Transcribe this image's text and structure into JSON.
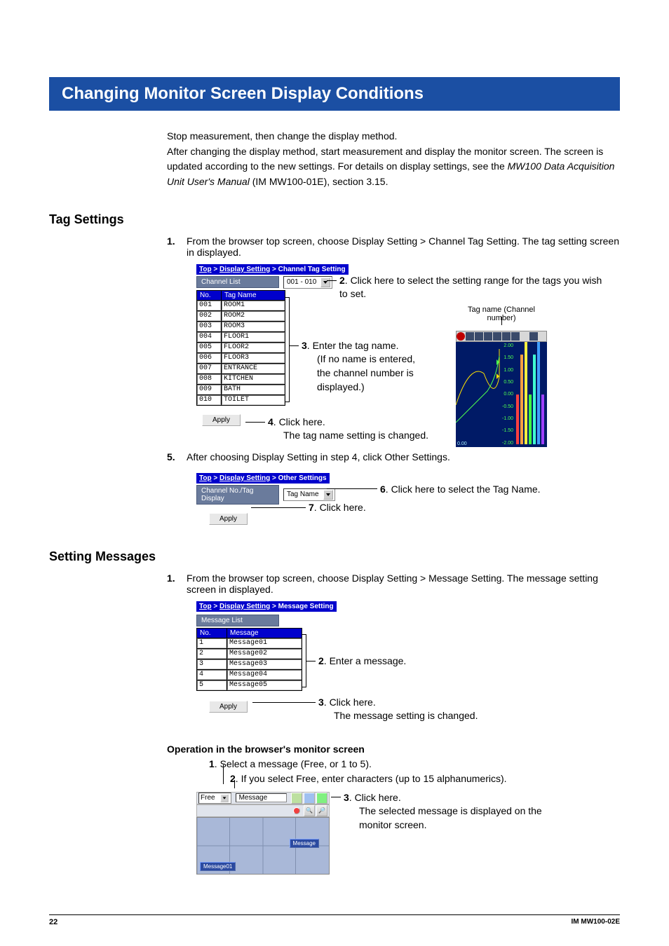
{
  "title": "Changing Monitor Screen Display Conditions",
  "intro": {
    "p1": "Stop measurement, then change the display method.",
    "p2": "After changing the display method, start measurement and display the monitor screen. The screen is updated according to the new settings. For details on display settings, see the ",
    "manual": "MW100 Data Acquisition Unit User's Manual",
    "p2b": " (IM MW100-01E), section 3.15."
  },
  "tag": {
    "heading": "Tag Settings",
    "step1_num": "1.",
    "step1": "From the browser top screen, choose Display Setting > Channel Tag Setting. The tag setting screen in displayed.",
    "breadcrumb": {
      "a": "Top",
      "sep": " > ",
      "b": "Display Setting",
      "c": " > Channel Tag Setting"
    },
    "panel": "Channel List",
    "range": "001 - 010",
    "col_no": "No.",
    "col_tag": "Tag Name",
    "rows": [
      {
        "no": "001",
        "name": "ROOM1"
      },
      {
        "no": "002",
        "name": "ROOM2"
      },
      {
        "no": "003",
        "name": "ROOM3"
      },
      {
        "no": "004",
        "name": "FLOOR1"
      },
      {
        "no": "005",
        "name": "FLOOR2"
      },
      {
        "no": "006",
        "name": "FLOOR3"
      },
      {
        "no": "007",
        "name": "ENTRANCE"
      },
      {
        "no": "008",
        "name": "KITCHEN"
      },
      {
        "no": "009",
        "name": "BATH"
      },
      {
        "no": "010",
        "name": "TOILET"
      }
    ],
    "apply": "Apply",
    "c2_num": "2",
    "c2": ".   Click here to select the setting range for the tags you wish to set.",
    "chart_label": "Tag name (Channel number)",
    "c3_num": "3",
    "c3a": ".   Enter the tag name.",
    "c3b": "(If no name is entered, the channel number is displayed.)",
    "c4_num": "4",
    "c4a": ".   Click here.",
    "c4b": "The tag name setting is changed.",
    "chart": {
      "ticks": [
        "2.00",
        "1.50",
        "1.00",
        "0.50",
        "0.00",
        "-0.50",
        "-1.00",
        "-1.50",
        "-2.00"
      ],
      "xval": "0.00",
      "trace_colors": [
        "#ffe400",
        "#4fff4f"
      ],
      "bar_colors": [
        "#ff4040",
        "#ffa040",
        "#fff040",
        "#40ff40",
        "#40ffd0",
        "#40a0ff",
        "#a040ff"
      ]
    },
    "step5_num": "5.",
    "step5": "After choosing Display Setting in step 4, click Other Settings.",
    "bc2": {
      "a": "Top",
      "b": "Display Setting",
      "c": "Other Settings"
    },
    "ch_label": "Channel No./Tag Display",
    "tagname_sel": "Tag Name",
    "c6_num": "6",
    "c6": ".   Click here to select the Tag Name.",
    "c7_num": "7",
    "c7": ".   Click here."
  },
  "msg": {
    "heading": "Setting Messages",
    "step1_num": "1.",
    "step1": "From the browser top screen, choose Display Setting > Message Setting. The message setting screen in displayed.",
    "bc": {
      "a": "Top",
      "b": "Display Setting",
      "c": "Message Setting"
    },
    "panel": "Message List",
    "col_no": "No.",
    "col_msg": "Message",
    "rows": [
      {
        "no": "1",
        "name": "Message01"
      },
      {
        "no": "2",
        "name": "Message02"
      },
      {
        "no": "3",
        "name": "Message03"
      },
      {
        "no": "4",
        "name": "Message04"
      },
      {
        "no": "5",
        "name": "Message05"
      }
    ],
    "apply": "Apply",
    "c2_num": "2",
    "c2": ".    Enter a message.",
    "c3_num": "3",
    "c3a": ".   Click here.",
    "c3b": "The message setting is changed."
  },
  "op": {
    "heading": "Operation in the browser's monitor screen",
    "s1_num": "1",
    "s1": ".   Select a message (Free, or 1 to 5).",
    "s2_num": "2",
    "s2": ".   If you select Free, enter characters (up to 15 alphanumerics).",
    "free": "Free",
    "msg": "Message",
    "msglabel": "Message01",
    "btn": "Message",
    "c3_num": "3",
    "c3a": ".   Click here.",
    "c3b": "The selected message is displayed on the monitor screen."
  },
  "footer": {
    "page": "22",
    "doc": "IM MW100-02E"
  }
}
